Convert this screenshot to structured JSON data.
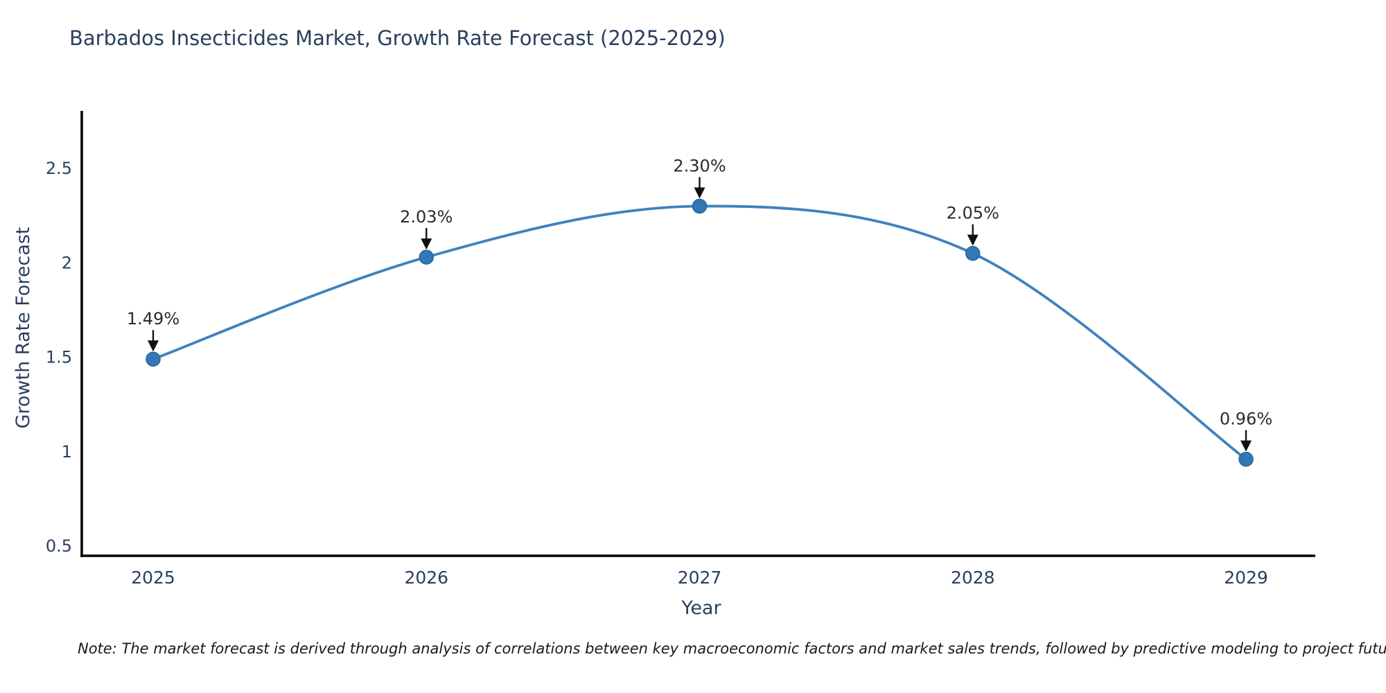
{
  "chart": {
    "title": "Barbados Insecticides Market, Growth Rate Forecast (2025-2029)",
    "note": "Note: The market forecast is derived through analysis of correlations between key macroeconomic factors and market sales trends, followed by predictive modeling to project future sales"
  },
  "chart_data": {
    "type": "line",
    "line_shape": "spline",
    "title": "Barbados Insecticides Market, Growth Rate Forecast (2025-2029)",
    "categories": [
      "2025",
      "2026",
      "2027",
      "2028",
      "2029"
    ],
    "values": [
      1.49,
      2.03,
      2.3,
      2.05,
      0.96
    ],
    "point_labels": [
      "1.49%",
      "2.03%",
      "2.30%",
      "2.05%",
      "0.96%"
    ],
    "xlabel": "Year",
    "ylabel": "Growth Rate Forecast",
    "yticks": [
      0.5,
      1,
      1.5,
      2,
      2.5
    ],
    "ylim": [
      0.45,
      2.95
    ],
    "grid": false,
    "legend": false,
    "annotations_have_arrows": true,
    "colors": {
      "line": "#3f81bd",
      "marker": "#3377b5",
      "marker_edge": "#27669c",
      "axis": "#000000",
      "tick_text": "#2a3f5f",
      "axis_title_text": "#2a3f5f",
      "title_text": "#2a3f5f",
      "annotation_text": "#2b2b2b",
      "arrow": "#111111",
      "background": "#ffffff"
    }
  }
}
